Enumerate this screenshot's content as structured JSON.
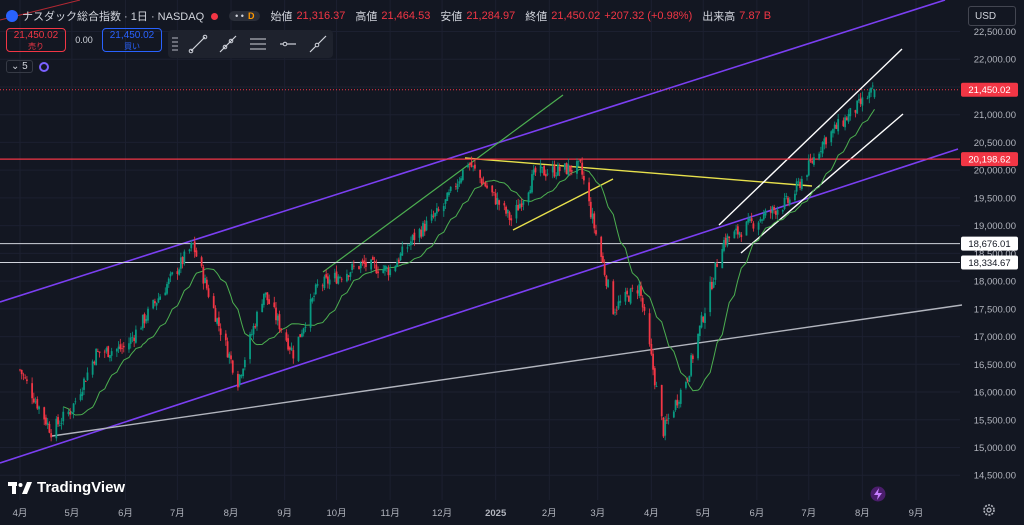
{
  "header": {
    "symbol_title": "ナスダック総合指数 · 1日 · NASDAQ",
    "badge_dots": "• •",
    "badge_letter": "D",
    "open_label": "始値",
    "open_value": "21,316.37",
    "high_label": "高値",
    "high_value": "21,464.53",
    "low_label": "安値",
    "low_value": "21,284.97",
    "close_label": "終値",
    "close_value": "21,450.02",
    "change": "+207.32 (+0.98%)",
    "volume_label": "出来高",
    "volume_value": "7.87 B"
  },
  "trade": {
    "sell_price": "21,450.02",
    "sell_label": "売り",
    "spread": "0.00",
    "buy_price": "21,450.02",
    "buy_label": "買い"
  },
  "indicator": {
    "count": "5"
  },
  "currency": "USD",
  "brand": "TradingView",
  "colors": {
    "up": "#089981",
    "down": "#f23645",
    "ma": "#4caf50",
    "channel": "#7b3ff2",
    "yellow": "#e8e14c",
    "white": "#e0e3eb",
    "bg": "#131722"
  },
  "chart_data": {
    "type": "candlestick",
    "x_axis": [
      "4月",
      "5月",
      "6月",
      "7月",
      "8月",
      "9月",
      "10月",
      "11月",
      "12月",
      "2025",
      "2月",
      "3月",
      "4月",
      "5月",
      "6月",
      "7月",
      "8月",
      "9月"
    ],
    "y_ticks": [
      "22,500.00",
      "22,000.00",
      "21,500.00",
      "21,000.00",
      "20,500.00",
      "20,000.00",
      "19,500.00",
      "19,000.00",
      "18,500.00",
      "18,000.00",
      "17,500.00",
      "17,000.00",
      "16,500.00",
      "16,000.00",
      "15,500.00",
      "15,000.00",
      "14,500.00"
    ],
    "ylim": [
      14300,
      22800
    ],
    "price_labels": [
      {
        "value": 21450.02,
        "text": "21,450.02",
        "style": "red"
      },
      {
        "value": 20198.62,
        "text": "20,198.62",
        "style": "red"
      },
      {
        "value": 18676.01,
        "text": "18,676.01",
        "style": "white"
      },
      {
        "value": 18334.67,
        "text": "18,334.67",
        "style": "white"
      }
    ],
    "horizontal_lines": [
      {
        "value": 21450.02,
        "style": "red-dotted"
      },
      {
        "value": 20198.62,
        "style": "red"
      },
      {
        "value": 18676.01,
        "style": "white"
      },
      {
        "value": 18334.67,
        "style": "white"
      }
    ],
    "close_path": [
      [
        "2024-04-01",
        16400
      ],
      [
        "2024-04-19",
        15300
      ],
      [
        "2024-05-01",
        15700
      ],
      [
        "2024-05-15",
        16700
      ],
      [
        "2024-06-01",
        16800
      ],
      [
        "2024-06-20",
        17700
      ],
      [
        "2024-07-10",
        18650
      ],
      [
        "2024-07-24",
        17300
      ],
      [
        "2024-08-05",
        16200
      ],
      [
        "2024-08-20",
        17800
      ],
      [
        "2024-09-06",
        16700
      ],
      [
        "2024-09-20",
        17900
      ],
      [
        "2024-10-15",
        18300
      ],
      [
        "2024-11-01",
        18200
      ],
      [
        "2024-11-15",
        18800
      ],
      [
        "2024-12-01",
        19300
      ],
      [
        "2024-12-16",
        20150
      ],
      [
        "2025-01-10",
        19100
      ],
      [
        "2025-01-24",
        19950
      ],
      [
        "2025-02-19",
        20050
      ],
      [
        "2025-03-10",
        17500
      ],
      [
        "2025-03-25",
        17900
      ],
      [
        "2025-04-08",
        15300
      ],
      [
        "2025-04-22",
        16300
      ],
      [
        "2025-05-12",
        18700
      ],
      [
        "2025-06-01",
        19100
      ],
      [
        "2025-06-20",
        19450
      ],
      [
        "2025-07-10",
        20550
      ],
      [
        "2025-07-28",
        21100
      ],
      [
        "2025-08-08",
        21450
      ]
    ]
  }
}
